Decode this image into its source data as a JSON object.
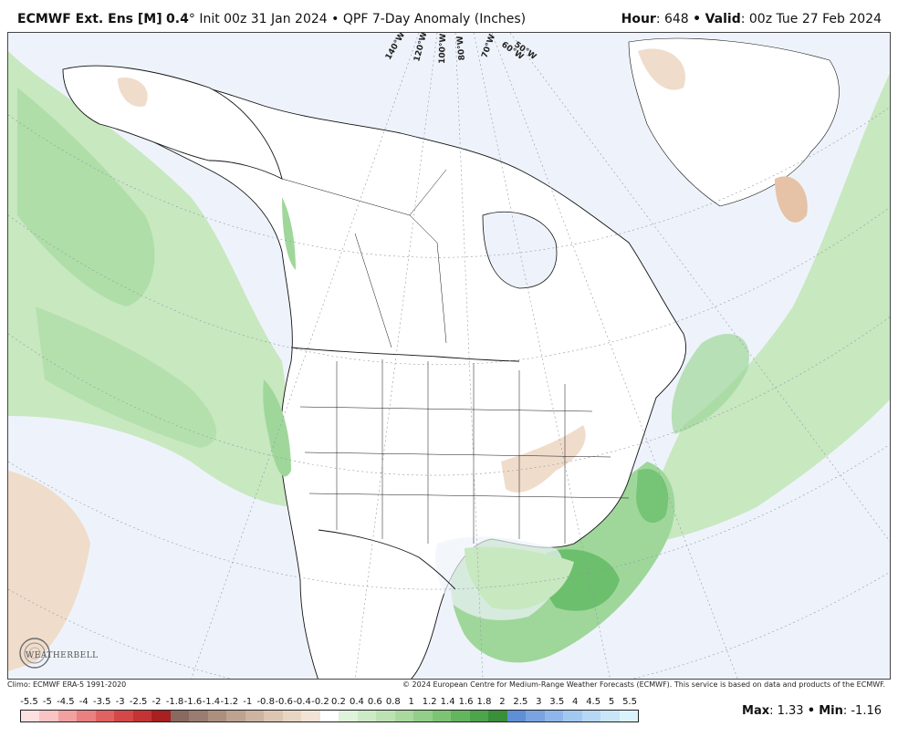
{
  "header": {
    "model": "ECMWF Ext. Ens [M]",
    "resolution": "0.4",
    "degree": "°",
    "init": "Init 00z 31 Jan 2024",
    "bullet": "•",
    "product": "QPF 7-Day Anomaly (Inches)",
    "hour_label": "Hour",
    "hour_value": ": 648",
    "valid_label": "Valid",
    "valid_value": ": 00z Tue 27 Feb 2024"
  },
  "map": {
    "longitude_labels": [
      "140°W",
      "120°W",
      "100°W",
      "80°W",
      "70°W",
      "60°W",
      "50°W"
    ],
    "colors": {
      "ocean": "#eef3fb",
      "land": "#ffffff",
      "wet_light": "#c8e8c0",
      "wet_mid": "#9fd79a",
      "wet_dark": "#6cbf6c",
      "dry_light": "#f0dccb",
      "dry_mid": "#e6c2a6",
      "border": "#111111",
      "graticule": "#8f98a8"
    }
  },
  "footer": {
    "climo": "Climo: ECMWF ERA-5 1991-2020",
    "copyright": "© 2024 European Centre for Medium-Range Weather Forecasts (ECMWF). This service is based on data and products of the ECMWF."
  },
  "colorbar": {
    "labels": [
      "-5.5",
      "-5",
      "-4.5",
      "-4",
      "-3.5",
      "-3",
      "-2.5",
      "-2",
      "-1.8",
      "-1.6",
      "-1.4",
      "-1.2",
      "-1",
      "-0.8",
      "-0.6",
      "-0.4",
      "-0.2",
      "0.2",
      "0.4",
      "0.6",
      "0.8",
      "1",
      "1.2",
      "1.4",
      "1.6",
      "1.8",
      "2",
      "2.5",
      "3",
      "3.5",
      "4",
      "4.5",
      "5",
      "5.5"
    ],
    "colors": [
      "#fde0e0",
      "#f9c4c4",
      "#f2a0a0",
      "#ea8080",
      "#e06262",
      "#d44848",
      "#c43434",
      "#a82020",
      "#8a6a60",
      "#9a7c70",
      "#ad8f80",
      "#bea292",
      "#cdb4a2",
      "#dcc6b2",
      "#e8d6c4",
      "#f1e4d6",
      "#ffffff",
      "#dff2da",
      "#cdeac6",
      "#bce2b3",
      "#a9d99f",
      "#93cf8a",
      "#7cc474",
      "#63b65d",
      "#4da44b",
      "#3a8f3a",
      "#5f8fd6",
      "#7aa3e0",
      "#8fb6ea",
      "#a3c8f0",
      "#b6d8f5",
      "#c8e6f8",
      "#daf2fb"
    ]
  },
  "stats": {
    "max_label": "Max",
    "max_value": ": 1.33",
    "bullet": "•",
    "min_label": "Min",
    "min_value": ": -1.16"
  },
  "logo": {
    "text": "WEATHERBELL"
  }
}
